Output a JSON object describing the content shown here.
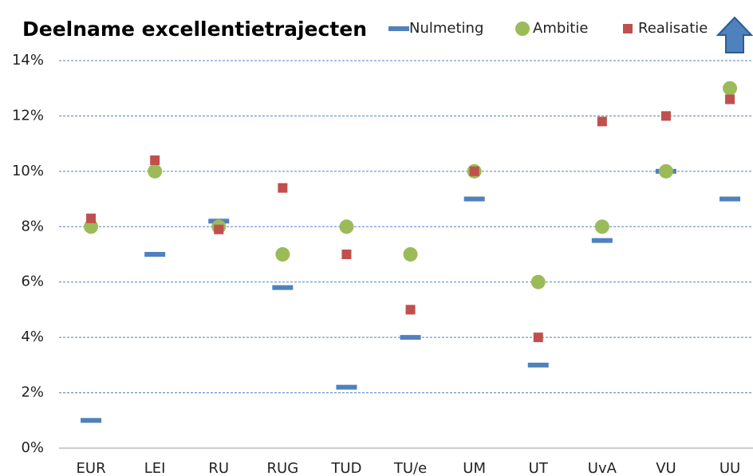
{
  "chart_data": {
    "type": "scatter",
    "title": "Deelname excellentietrajecten",
    "categories": [
      "EUR",
      "LEI",
      "RU",
      "RUG",
      "TUD",
      "TU/e",
      "UM",
      "UT",
      "UvA",
      "VU",
      "UU"
    ],
    "series": [
      {
        "name": "Nulmeting",
        "color": "#4f81bd",
        "marker": "dash",
        "values": [
          1,
          7,
          8.2,
          5.8,
          2.2,
          4,
          9,
          3,
          7.5,
          10,
          9
        ]
      },
      {
        "name": "Ambitie",
        "color": "#9bbb59",
        "marker": "circle",
        "values": [
          8,
          10,
          8,
          7,
          8,
          7,
          10,
          6,
          8,
          10,
          13
        ]
      },
      {
        "name": "Realisatie",
        "color": "#c0504d",
        "marker": "square",
        "values": [
          8.3,
          10.4,
          7.9,
          9.4,
          7,
          5,
          10,
          4,
          11.8,
          12,
          12.6
        ]
      }
    ],
    "ylim": [
      0,
      14
    ],
    "yticks": [
      {
        "value": 0,
        "label": "0%"
      },
      {
        "value": 2,
        "label": "2%"
      },
      {
        "value": 4,
        "label": "4%"
      },
      {
        "value": 6,
        "label": "6%"
      },
      {
        "value": 8,
        "label": "8%"
      },
      {
        "value": 10,
        "label": "10%"
      },
      {
        "value": 12,
        "label": "12%"
      },
      {
        "value": 14,
        "label": "14%"
      }
    ],
    "grid": true,
    "legend": "top"
  }
}
